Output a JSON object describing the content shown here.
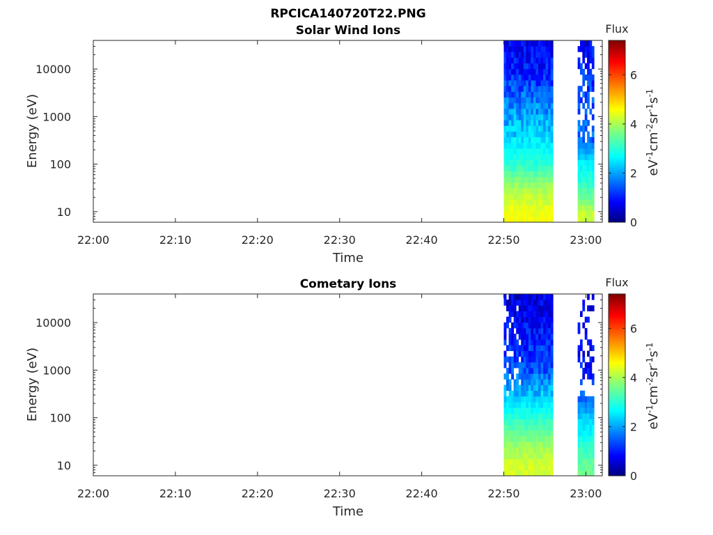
{
  "figure_title": "RPCICA140720T22.PNG",
  "chart_data": [
    {
      "type": "heatmap",
      "title": "Solar Wind Ions",
      "xlabel": "Time",
      "ylabel": "Energy (eV)",
      "x_ticks": [
        "22:00",
        "22:10",
        "22:20",
        "22:30",
        "22:40",
        "22:50",
        "23:00"
      ],
      "xlim": [
        "22:00",
        "23:02"
      ],
      "y_scale": "log",
      "y_ticks": [
        10,
        100,
        1000,
        10000
      ],
      "ylim": [
        6,
        40000
      ],
      "colorbar": {
        "title": "Flux",
        "label": "eV-1cm-2sr-1s-1",
        "range": [
          0,
          7.4
        ],
        "ticks": [
          0,
          2,
          4,
          6
        ]
      },
      "data_regions": [
        {
          "time_start": "22:50",
          "time_end": "22:56",
          "description": "dense block",
          "flux_by_energy": [
            [
              10,
              4.5
            ],
            [
              30,
              4.0
            ],
            [
              100,
              3.0
            ],
            [
              300,
              2.5
            ],
            [
              1000,
              2.0
            ],
            [
              10000,
              1.0
            ],
            [
              40000,
              0.7
            ]
          ]
        },
        {
          "time_start": "22:59",
          "time_end": "23:01",
          "description": "sparse block",
          "flux_by_energy": [
            [
              10,
              4.2
            ],
            [
              30,
              3.2
            ],
            [
              100,
              2.6
            ],
            [
              300,
              1.6
            ],
            [
              1000,
              1.5
            ],
            [
              10000,
              1.1
            ],
            [
              40000,
              0.8
            ]
          ]
        }
      ]
    },
    {
      "type": "heatmap",
      "title": "Cometary Ions",
      "xlabel": "Time",
      "ylabel": "Energy (eV)",
      "x_ticks": [
        "22:00",
        "22:10",
        "22:20",
        "22:30",
        "22:40",
        "22:50",
        "23:00"
      ],
      "xlim": [
        "22:00",
        "23:02"
      ],
      "y_scale": "log",
      "y_ticks": [
        10,
        100,
        1000,
        10000
      ],
      "ylim": [
        6,
        40000
      ],
      "colorbar": {
        "title": "Flux",
        "label": "eV-1cm-2sr-1s-1",
        "range": [
          0,
          7.4
        ],
        "ticks": [
          0,
          2,
          4,
          6
        ]
      },
      "data_regions": [
        {
          "time_start": "22:50",
          "time_end": "22:56",
          "description": "dense block",
          "flux_by_energy": [
            [
              10,
              4.3
            ],
            [
              30,
              3.8
            ],
            [
              100,
              3.0
            ],
            [
              300,
              2.2
            ],
            [
              1000,
              1.4
            ],
            [
              10000,
              0.8
            ],
            [
              40000,
              0.6
            ]
          ]
        },
        {
          "time_start": "22:59",
          "time_end": "23:01",
          "description": "sparse block",
          "flux_by_energy": [
            [
              10,
              3.5
            ],
            [
              30,
              2.9
            ],
            [
              100,
              2.3
            ],
            [
              300,
              1.4
            ],
            [
              1000,
              0.9
            ],
            [
              10000,
              0.7
            ],
            [
              40000,
              0.6
            ]
          ]
        }
      ]
    }
  ]
}
